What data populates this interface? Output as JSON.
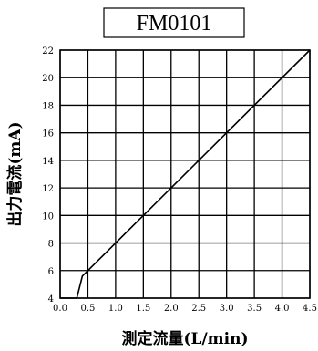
{
  "chart_data": {
    "type": "line",
    "title": "FM0101",
    "xlabel": "測定流量(L/min)",
    "ylabel": "出力電流(mA)",
    "xlim": [
      0,
      4.5
    ],
    "ylim": [
      4,
      22
    ],
    "xticks": [
      "0.0",
      "0.5",
      "1.0",
      "1.5",
      "2.0",
      "2.5",
      "3.0",
      "3.5",
      "4.0",
      "4.5"
    ],
    "yticks": [
      "4",
      "6",
      "8",
      "10",
      "12",
      "14",
      "16",
      "18",
      "20",
      "22"
    ],
    "grid": true,
    "series": [
      {
        "x": [
          0.0,
          0.3,
          0.4,
          4.5
        ],
        "y": [
          4.0,
          4.0,
          5.6,
          22.0
        ]
      }
    ]
  }
}
